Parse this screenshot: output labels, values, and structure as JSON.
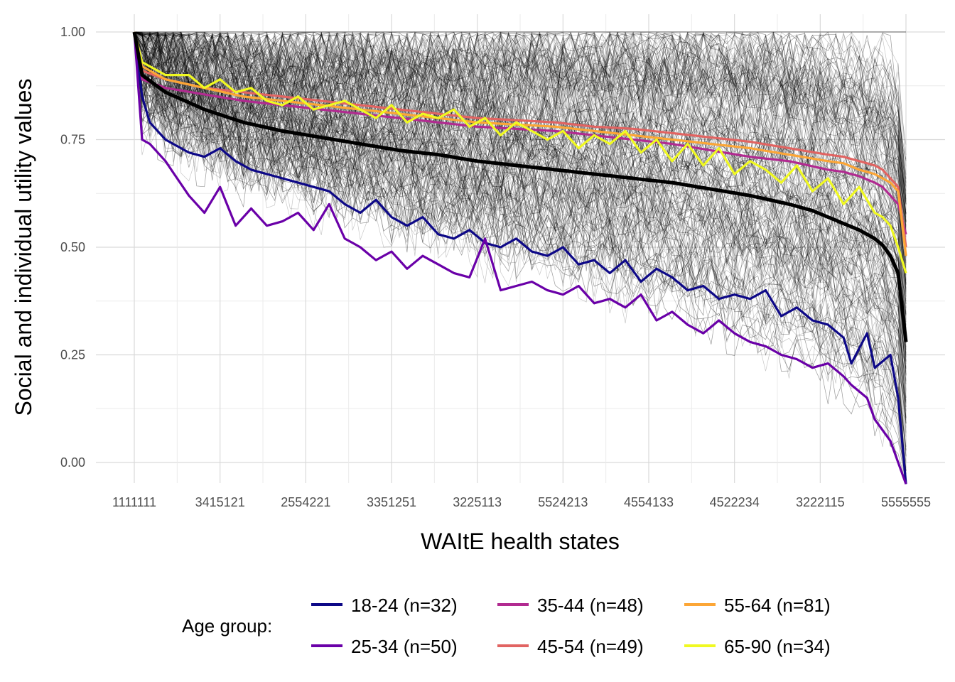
{
  "chart_data": {
    "type": "line",
    "title": "",
    "xlabel": "WAItE health states",
    "ylabel": "Social and individual utility values",
    "ylim": [
      -0.05,
      1.04
    ],
    "grid": true,
    "y_ticks": [
      "0.00",
      "0.25",
      "0.50",
      "0.75",
      "1.00"
    ],
    "y_tick_values": [
      0,
      0.25,
      0.5,
      0.75,
      1.0
    ],
    "x_tick_labels": [
      "1111111",
      "3415121",
      "2554221",
      "3351251",
      "3225113",
      "5524213",
      "4554133",
      "4522234",
      "3222115",
      "5555555"
    ],
    "n_states": 100,
    "legend": {
      "title": "Age group:",
      "placement": "bottom"
    },
    "social_value_series": {
      "color": "#000000",
      "x": [
        1,
        2,
        5,
        10,
        15,
        20,
        25,
        30,
        35,
        40,
        45,
        50,
        55,
        60,
        65,
        70,
        75,
        80,
        85,
        88,
        90,
        92,
        94,
        96,
        97,
        98,
        99,
        100
      ],
      "values": [
        1.0,
        0.9,
        0.86,
        0.82,
        0.79,
        0.77,
        0.755,
        0.74,
        0.725,
        0.715,
        0.7,
        0.69,
        0.68,
        0.67,
        0.66,
        0.65,
        0.635,
        0.62,
        0.6,
        0.585,
        0.57,
        0.555,
        0.54,
        0.52,
        0.505,
        0.48,
        0.44,
        0.28
      ]
    },
    "individual_lines": {
      "count": 294,
      "color": "#000000",
      "opacity": 0.22
    },
    "series": [
      {
        "name": "18-24 (n=32)",
        "color": "#0d0887",
        "x": [
          1,
          2,
          3,
          5,
          8,
          10,
          12,
          14,
          16,
          18,
          20,
          22,
          24,
          26,
          28,
          30,
          32,
          34,
          36,
          38,
          40,
          42,
          44,
          46,
          48,
          50,
          52,
          54,
          56,
          58,
          60,
          62,
          64,
          66,
          68,
          70,
          72,
          74,
          76,
          78,
          80,
          82,
          84,
          86,
          88,
          90,
          92,
          93,
          95,
          96,
          98,
          99,
          100
        ],
        "values": [
          1.0,
          0.85,
          0.79,
          0.75,
          0.72,
          0.71,
          0.73,
          0.7,
          0.68,
          0.67,
          0.66,
          0.65,
          0.64,
          0.63,
          0.6,
          0.58,
          0.61,
          0.57,
          0.55,
          0.57,
          0.53,
          0.52,
          0.54,
          0.51,
          0.5,
          0.52,
          0.49,
          0.48,
          0.5,
          0.46,
          0.47,
          0.44,
          0.47,
          0.42,
          0.45,
          0.43,
          0.4,
          0.41,
          0.38,
          0.39,
          0.38,
          0.4,
          0.34,
          0.36,
          0.33,
          0.32,
          0.29,
          0.23,
          0.3,
          0.22,
          0.25,
          0.15,
          -0.05
        ]
      },
      {
        "name": "25-34 (n=50)",
        "color": "#6a00a8",
        "x": [
          1,
          2,
          3,
          5,
          8,
          10,
          12,
          14,
          16,
          18,
          20,
          22,
          24,
          26,
          28,
          30,
          32,
          34,
          36,
          38,
          40,
          42,
          44,
          46,
          48,
          50,
          52,
          54,
          56,
          58,
          60,
          62,
          64,
          66,
          68,
          70,
          72,
          74,
          76,
          78,
          80,
          82,
          84,
          86,
          88,
          90,
          92,
          93,
          95,
          96,
          98,
          99,
          100
        ],
        "values": [
          1.0,
          0.75,
          0.74,
          0.7,
          0.62,
          0.58,
          0.64,
          0.55,
          0.59,
          0.55,
          0.56,
          0.58,
          0.54,
          0.6,
          0.52,
          0.5,
          0.47,
          0.49,
          0.45,
          0.48,
          0.46,
          0.44,
          0.43,
          0.52,
          0.4,
          0.41,
          0.42,
          0.4,
          0.39,
          0.41,
          0.37,
          0.38,
          0.36,
          0.39,
          0.33,
          0.35,
          0.32,
          0.3,
          0.33,
          0.3,
          0.28,
          0.27,
          0.25,
          0.24,
          0.22,
          0.23,
          0.2,
          0.18,
          0.15,
          0.1,
          0.05,
          0.0,
          -0.05
        ]
      },
      {
        "name": "35-44 (n=48)",
        "color": "#b12a90",
        "x": [
          1,
          2,
          5,
          10,
          15,
          20,
          25,
          30,
          35,
          40,
          45,
          50,
          55,
          60,
          65,
          70,
          75,
          80,
          85,
          90,
          92,
          94,
          96,
          97,
          98,
          99,
          100
        ],
        "values": [
          1.0,
          0.89,
          0.87,
          0.855,
          0.84,
          0.83,
          0.82,
          0.81,
          0.8,
          0.79,
          0.78,
          0.775,
          0.77,
          0.76,
          0.75,
          0.74,
          0.725,
          0.71,
          0.7,
          0.68,
          0.675,
          0.665,
          0.65,
          0.64,
          0.62,
          0.6,
          0.53
        ]
      },
      {
        "name": "45-54 (n=49)",
        "color": "#e16462",
        "x": [
          1,
          2,
          5,
          10,
          15,
          20,
          25,
          30,
          35,
          40,
          45,
          50,
          55,
          60,
          65,
          70,
          75,
          80,
          85,
          90,
          92,
          94,
          96,
          97,
          98,
          99,
          100
        ],
        "values": [
          1.0,
          0.91,
          0.89,
          0.87,
          0.86,
          0.85,
          0.84,
          0.83,
          0.82,
          0.81,
          0.8,
          0.795,
          0.79,
          0.78,
          0.775,
          0.765,
          0.755,
          0.745,
          0.73,
          0.715,
          0.71,
          0.7,
          0.69,
          0.68,
          0.66,
          0.64,
          0.5
        ]
      },
      {
        "name": "55-64 (n=81)",
        "color": "#fca636",
        "x": [
          1,
          2,
          5,
          10,
          15,
          20,
          25,
          30,
          35,
          40,
          45,
          50,
          55,
          60,
          65,
          70,
          75,
          80,
          85,
          90,
          92,
          94,
          96,
          97,
          98,
          99,
          100
        ],
        "values": [
          1.0,
          0.92,
          0.89,
          0.87,
          0.85,
          0.84,
          0.83,
          0.82,
          0.81,
          0.8,
          0.79,
          0.785,
          0.78,
          0.77,
          0.76,
          0.75,
          0.74,
          0.73,
          0.715,
          0.7,
          0.695,
          0.68,
          0.67,
          0.66,
          0.65,
          0.63,
          0.48
        ]
      },
      {
        "name": "65-90 (n=34)",
        "color": "#f0f921",
        "x": [
          1,
          2,
          5,
          8,
          10,
          12,
          14,
          16,
          18,
          20,
          22,
          24,
          26,
          28,
          30,
          32,
          34,
          36,
          38,
          40,
          42,
          44,
          46,
          48,
          50,
          52,
          54,
          56,
          58,
          60,
          62,
          64,
          66,
          68,
          70,
          72,
          74,
          76,
          78,
          80,
          82,
          84,
          86,
          88,
          90,
          92,
          94,
          96,
          97,
          98,
          99,
          100
        ],
        "values": [
          1.0,
          0.93,
          0.9,
          0.9,
          0.87,
          0.89,
          0.86,
          0.87,
          0.84,
          0.83,
          0.85,
          0.82,
          0.83,
          0.84,
          0.82,
          0.8,
          0.83,
          0.79,
          0.81,
          0.8,
          0.82,
          0.78,
          0.8,
          0.76,
          0.79,
          0.77,
          0.75,
          0.77,
          0.73,
          0.76,
          0.74,
          0.77,
          0.72,
          0.75,
          0.7,
          0.74,
          0.69,
          0.73,
          0.67,
          0.7,
          0.68,
          0.65,
          0.69,
          0.63,
          0.66,
          0.6,
          0.64,
          0.58,
          0.57,
          0.55,
          0.5,
          0.44
        ]
      }
    ]
  }
}
